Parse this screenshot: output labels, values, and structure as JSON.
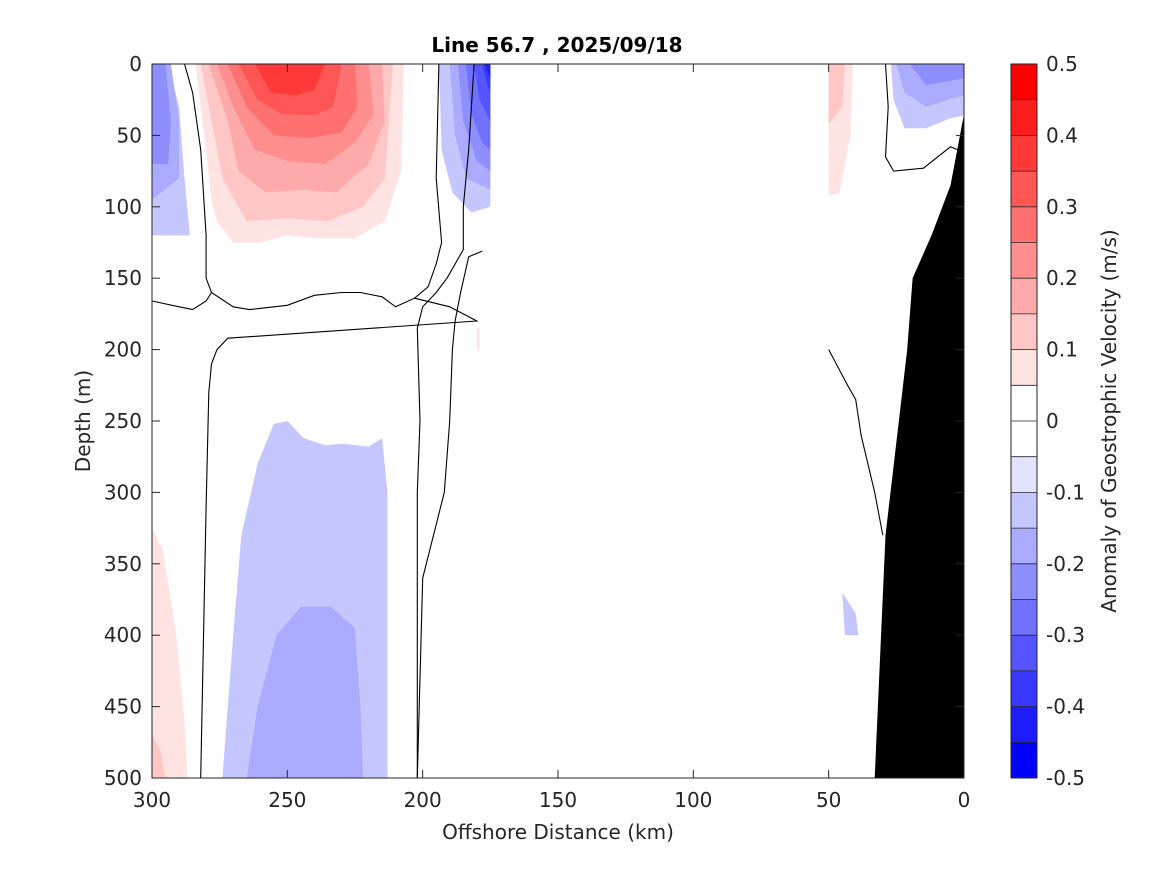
{
  "chart_data": {
    "type": "contour",
    "title": "Line 56.7 , 2025/09/18",
    "xlabel": "Offshore Distance (km)",
    "ylabel": "Depth (m)",
    "colorbar_label": "Anomaly of Geostrophic Velocity (m/s)",
    "xlim": [
      300,
      0
    ],
    "ylim": [
      0,
      500
    ],
    "x_reversed": true,
    "y_reversed": true,
    "x_ticks": [
      300,
      250,
      200,
      150,
      100,
      50,
      0
    ],
    "y_ticks": [
      0,
      50,
      100,
      150,
      200,
      250,
      300,
      350,
      400,
      450,
      500
    ],
    "x_tick_labels": [
      "300",
      "250",
      "200",
      "150",
      "100",
      "50",
      "0"
    ],
    "y_tick_labels": [
      "0",
      "50",
      "100",
      "150",
      "200",
      "250",
      "300",
      "350",
      "400",
      "450",
      "500"
    ],
    "colorbar": {
      "range": [
        -0.5,
        0.5
      ],
      "tick_values": [
        0.5,
        0.4,
        0.3,
        0.2,
        0.1,
        0,
        -0.1,
        -0.2,
        -0.3,
        -0.4,
        -0.5
      ],
      "tick_labels": [
        "0.5",
        "0.4",
        "0.3",
        "0.2",
        "0.1",
        "0",
        "-0.1",
        "-0.2",
        "-0.3",
        "-0.4",
        "-0.5"
      ],
      "levels": [
        0.5,
        0.45,
        0.4,
        0.35,
        0.3,
        0.25,
        0.2,
        0.15,
        0.1,
        0.05,
        0,
        -0.05,
        -0.1,
        -0.15,
        -0.2,
        -0.25,
        -0.3,
        -0.35,
        -0.4,
        -0.45,
        -0.5
      ],
      "colors": [
        "#ff0000",
        "#ff1c1c",
        "#ff3838",
        "#ff5555",
        "#ff7171",
        "#ff8e8e",
        "#ffaaaa",
        "#ffc6c6",
        "#ffe3e3",
        "#ffffff",
        "#ffffff",
        "#e3e3ff",
        "#c6c6ff",
        "#aaaaff",
        "#8e8eff",
        "#7171ff",
        "#5555ff",
        "#3838ff",
        "#1c1cff",
        "#0000ff"
      ]
    },
    "color_positive": "#ff0000",
    "color_negative": "#0000ff",
    "bathymetry_color": "#000000",
    "regions": [
      {
        "name": "west-blue-upper",
        "level": -0.1,
        "points": [
          [
            300,
            0
          ],
          [
            294,
            0
          ],
          [
            290,
            30
          ],
          [
            288,
            80
          ],
          [
            286,
            120
          ],
          [
            296,
            120
          ],
          [
            300,
            120
          ]
        ]
      },
      {
        "name": "west-blue-upper",
        "level": -0.15,
        "points": [
          [
            300,
            0
          ],
          [
            293,
            0
          ],
          [
            290,
            40
          ],
          [
            290,
            80
          ],
          [
            300,
            95
          ]
        ]
      },
      {
        "name": "west-blue-upper",
        "level": -0.2,
        "points": [
          [
            300,
            0
          ],
          [
            295,
            0
          ],
          [
            293,
            40
          ],
          [
            294,
            70
          ],
          [
            300,
            70
          ]
        ]
      },
      {
        "name": "west-red-deep",
        "level": 0.05,
        "points": [
          [
            300,
            325
          ],
          [
            296,
            340
          ],
          [
            291,
            400
          ],
          [
            288,
            460
          ],
          [
            287,
            500
          ],
          [
            300,
            500
          ]
        ]
      },
      {
        "name": "west-red-deep",
        "level": 0.1,
        "points": [
          [
            300,
            470
          ],
          [
            297,
            480
          ],
          [
            295,
            500
          ],
          [
            300,
            500
          ]
        ]
      },
      {
        "name": "core-red",
        "level": 0.05,
        "points": [
          [
            284,
            0
          ],
          [
            280,
            60
          ],
          [
            278,
            95
          ],
          [
            276,
            110
          ],
          [
            270,
            125
          ],
          [
            260,
            125
          ],
          [
            250,
            120
          ],
          [
            240,
            122
          ],
          [
            225,
            122
          ],
          [
            214,
            110
          ],
          [
            208,
            75
          ],
          [
            207,
            0
          ]
        ]
      },
      {
        "name": "core-red",
        "level": 0.1,
        "points": [
          [
            282,
            0
          ],
          [
            278,
            40
          ],
          [
            274,
            80
          ],
          [
            265,
            110
          ],
          [
            250,
            108
          ],
          [
            235,
            110
          ],
          [
            222,
            100
          ],
          [
            214,
            80
          ],
          [
            211,
            0
          ]
        ]
      },
      {
        "name": "core-red",
        "level": 0.15,
        "points": [
          [
            279,
            0
          ],
          [
            272,
            40
          ],
          [
            268,
            75
          ],
          [
            258,
            90
          ],
          [
            245,
            88
          ],
          [
            232,
            90
          ],
          [
            220,
            70
          ],
          [
            214,
            40
          ],
          [
            215,
            0
          ]
        ]
      },
      {
        "name": "core-red",
        "level": 0.2,
        "points": [
          [
            276,
            0
          ],
          [
            270,
            30
          ],
          [
            262,
            60
          ],
          [
            250,
            68
          ],
          [
            236,
            70
          ],
          [
            225,
            55
          ],
          [
            218,
            35
          ],
          [
            220,
            0
          ]
        ]
      },
      {
        "name": "core-red",
        "level": 0.25,
        "points": [
          [
            272,
            0
          ],
          [
            265,
            30
          ],
          [
            255,
            50
          ],
          [
            242,
            52
          ],
          [
            230,
            48
          ],
          [
            224,
            30
          ],
          [
            225,
            0
          ]
        ]
      },
      {
        "name": "core-red",
        "level": 0.3,
        "points": [
          [
            268,
            0
          ],
          [
            261,
            25
          ],
          [
            252,
            35
          ],
          [
            240,
            36
          ],
          [
            233,
            30
          ],
          [
            230,
            0
          ]
        ]
      },
      {
        "name": "core-red",
        "level": 0.35,
        "points": [
          [
            262,
            0
          ],
          [
            256,
            20
          ],
          [
            247,
            22
          ],
          [
            240,
            18
          ],
          [
            236,
            0
          ]
        ]
      },
      {
        "name": "front-blue",
        "level": -0.1,
        "points": [
          [
            194,
            0
          ],
          [
            193,
            60
          ],
          [
            189,
            90
          ],
          [
            182,
            104
          ],
          [
            175,
            100
          ],
          [
            175,
            0
          ]
        ]
      },
      {
        "name": "front-blue",
        "level": -0.15,
        "points": [
          [
            190,
            0
          ],
          [
            188,
            50
          ],
          [
            184,
            80
          ],
          [
            175,
            88
          ],
          [
            175,
            0
          ]
        ]
      },
      {
        "name": "front-blue",
        "level": -0.2,
        "points": [
          [
            187,
            0
          ],
          [
            185,
            40
          ],
          [
            180,
            68
          ],
          [
            175,
            75
          ],
          [
            175,
            0
          ]
        ]
      },
      {
        "name": "front-blue",
        "level": -0.25,
        "points": [
          [
            184,
            0
          ],
          [
            182,
            35
          ],
          [
            178,
            55
          ],
          [
            175,
            60
          ],
          [
            175,
            0
          ]
        ]
      },
      {
        "name": "front-blue",
        "level": -0.3,
        "points": [
          [
            181,
            0
          ],
          [
            179,
            25
          ],
          [
            175,
            40
          ],
          [
            175,
            0
          ]
        ]
      },
      {
        "name": "front-blue",
        "level": -0.35,
        "points": [
          [
            178,
            0
          ],
          [
            176,
            15
          ],
          [
            175,
            20
          ],
          [
            175,
            0
          ]
        ]
      },
      {
        "name": "front-blue",
        "level": -0.4,
        "points": [
          [
            177,
            0
          ],
          [
            175,
            10
          ],
          [
            175,
            0
          ]
        ]
      },
      {
        "name": "mid-blue",
        "level": -0.1,
        "points": [
          [
            274,
            500
          ],
          [
            270,
            400
          ],
          [
            267,
            330
          ],
          [
            261,
            280
          ],
          [
            255,
            252
          ],
          [
            250,
            250
          ],
          [
            244,
            262
          ],
          [
            236,
            267
          ],
          [
            229,
            266
          ],
          [
            220,
            268
          ],
          [
            215,
            262
          ],
          [
            213,
            300
          ],
          [
            213,
            500
          ]
        ]
      },
      {
        "name": "mid-blue",
        "level": -0.15,
        "points": [
          [
            265,
            500
          ],
          [
            261,
            450
          ],
          [
            254,
            400
          ],
          [
            245,
            380
          ],
          [
            234,
            380
          ],
          [
            225,
            395
          ],
          [
            223,
            450
          ],
          [
            222,
            500
          ]
        ]
      },
      {
        "name": "east-red",
        "level": 0.05,
        "points": [
          [
            50,
            0
          ],
          [
            41,
            0
          ],
          [
            42,
            50
          ],
          [
            46,
            90
          ],
          [
            50,
            92
          ]
        ]
      },
      {
        "name": "east-red",
        "level": 0.1,
        "points": [
          [
            50,
            0
          ],
          [
            44,
            0
          ],
          [
            45,
            30
          ],
          [
            50,
            42
          ]
        ]
      },
      {
        "name": "east-red-speck",
        "level": 0.05,
        "points": [
          [
            180,
            185
          ],
          [
            179,
            185
          ],
          [
            179,
            200
          ],
          [
            180,
            200
          ]
        ]
      },
      {
        "name": "east-blue",
        "level": -0.1,
        "points": [
          [
            27,
            0
          ],
          [
            26,
            25
          ],
          [
            22,
            45
          ],
          [
            14,
            45
          ],
          [
            5,
            38
          ],
          [
            0,
            36
          ],
          [
            0,
            0
          ]
        ]
      },
      {
        "name": "east-blue",
        "level": -0.15,
        "points": [
          [
            25,
            0
          ],
          [
            22,
            20
          ],
          [
            14,
            30
          ],
          [
            6,
            25
          ],
          [
            0,
            22
          ],
          [
            0,
            0
          ]
        ]
      },
      {
        "name": "east-blue",
        "level": -0.2,
        "points": [
          [
            20,
            0
          ],
          [
            14,
            15
          ],
          [
            6,
            12
          ],
          [
            0,
            10
          ],
          [
            0,
            0
          ]
        ]
      },
      {
        "name": "east-blue-deep",
        "level": -0.1,
        "points": [
          [
            45,
            370
          ],
          [
            44,
            400
          ],
          [
            39,
            400
          ],
          [
            40,
            385
          ]
        ]
      }
    ],
    "bathymetry": [
      [
        33,
        500
      ],
      [
        29,
        330
      ],
      [
        21,
        200
      ],
      [
        19,
        150
      ],
      [
        12,
        120
      ],
      [
        5,
        85
      ],
      [
        0,
        35
      ],
      [
        0,
        500
      ]
    ],
    "zero_contours": [
      [
        [
          288,
          0
        ],
        [
          285,
          20
        ],
        [
          282,
          60
        ],
        [
          280,
          120
        ],
        [
          280,
          150
        ],
        [
          278,
          160
        ],
        [
          270,
          170
        ],
        [
          264,
          172
        ],
        [
          250,
          169
        ],
        [
          240,
          162
        ],
        [
          230,
          160
        ],
        [
          223,
          160
        ],
        [
          215,
          163
        ],
        [
          210,
          170
        ],
        [
          203,
          164
        ],
        [
          198,
          156
        ],
        [
          195,
          140
        ],
        [
          193,
          125
        ],
        [
          195,
          80
        ],
        [
          194,
          0
        ]
      ],
      [
        [
          300,
          166
        ],
        [
          290,
          170
        ],
        [
          285,
          172
        ],
        [
          280,
          166
        ],
        [
          278,
          160
        ]
      ],
      [
        [
          203,
          164
        ],
        [
          190,
          170
        ],
        [
          180,
          180
        ],
        [
          272,
          192
        ],
        [
          276,
          200
        ],
        [
          278,
          210
        ],
        [
          279,
          230
        ],
        [
          280,
          310
        ],
        [
          282,
          500
        ]
      ],
      [
        [
          181,
          0
        ],
        [
          183,
          60
        ],
        [
          185,
          100
        ],
        [
          185,
          130
        ],
        [
          191,
          150
        ],
        [
          195,
          160
        ],
        [
          200,
          170
        ],
        [
          202,
          185
        ],
        [
          201,
          250
        ],
        [
          202,
          300
        ],
        [
          202,
          400
        ],
        [
          202,
          500
        ]
      ],
      [
        [
          178,
          131
        ],
        [
          183,
          135
        ],
        [
          186,
          160
        ],
        [
          188,
          180
        ],
        [
          189,
          200
        ],
        [
          190,
          250
        ],
        [
          192,
          300
        ],
        [
          200,
          360
        ],
        [
          202,
          500
        ]
      ],
      [
        [
          29,
          0
        ],
        [
          28,
          30
        ],
        [
          29,
          65
        ],
        [
          26,
          75
        ],
        [
          15,
          73
        ],
        [
          5,
          58
        ],
        [
          0,
          62
        ]
      ],
      [
        [
          50,
          200
        ],
        [
          43,
          225
        ],
        [
          40,
          235
        ],
        [
          38,
          260
        ],
        [
          33,
          300
        ],
        [
          30,
          330
        ]
      ]
    ]
  }
}
